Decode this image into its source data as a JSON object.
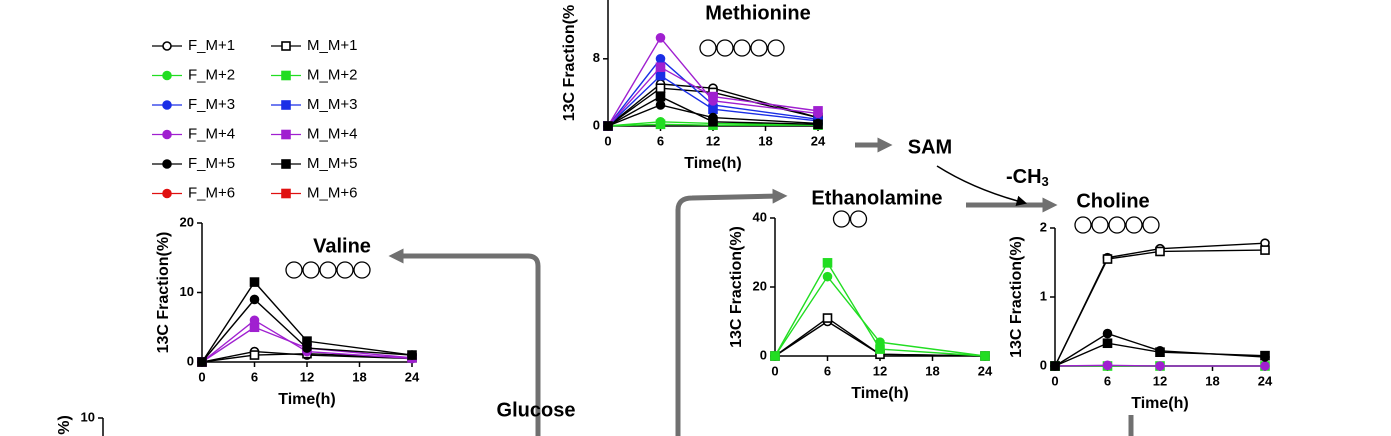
{
  "legend": [
    {
      "name": "F_M+1",
      "color": "#000000",
      "marker": "open-circle"
    },
    {
      "name": "M_M+1",
      "color": "#000000",
      "marker": "open-square"
    },
    {
      "name": "F_M+2",
      "color": "#22dd22",
      "marker": "circle"
    },
    {
      "name": "M_M+2",
      "color": "#22dd22",
      "marker": "square"
    },
    {
      "name": "F_M+3",
      "color": "#1a2ee6",
      "marker": "circle"
    },
    {
      "name": "M_M+3",
      "color": "#1a2ee6",
      "marker": "square"
    },
    {
      "name": "F_M+4",
      "color": "#a020d0",
      "marker": "circle"
    },
    {
      "name": "M_M+4",
      "color": "#a020d0",
      "marker": "square"
    },
    {
      "name": "F_M+5",
      "color": "#000000",
      "marker": "circle"
    },
    {
      "name": "M_M+5",
      "color": "#000000",
      "marker": "square"
    },
    {
      "name": "F_M+6",
      "color": "#e01010",
      "marker": "circle"
    },
    {
      "name": "M_M+6",
      "color": "#e01010",
      "marker": "square"
    }
  ],
  "pathway": {
    "sam": "SAM",
    "methyl": "-CH",
    "methyl_sub": "3",
    "glucose": "Glucose"
  },
  "chart_data": [
    {
      "type": "line",
      "title": "Methionine",
      "x_label": "Time(h)",
      "y_label": "13C Fraction(%",
      "x": [
        0,
        6,
        12,
        24
      ],
      "xlim": [
        0,
        24
      ],
      "xticks": [
        0,
        6,
        12,
        18,
        24
      ],
      "ylim": [
        0,
        15
      ],
      "yticks": [
        0,
        8
      ],
      "series": [
        {
          "name": "F_M+1",
          "color": "#000000",
          "marker": "open-circle",
          "values": [
            0,
            5,
            4.5,
            1
          ]
        },
        {
          "name": "M_M+1",
          "color": "#000000",
          "marker": "open-square",
          "values": [
            0,
            4.5,
            4,
            1
          ]
        },
        {
          "name": "F_M+2",
          "color": "#22dd22",
          "marker": "circle",
          "values": [
            0,
            0.5,
            0.3,
            0.2
          ]
        },
        {
          "name": "M_M+2",
          "color": "#22dd22",
          "marker": "square",
          "values": [
            0,
            0.2,
            0.1,
            0.1
          ]
        },
        {
          "name": "F_M+3",
          "color": "#1a2ee6",
          "marker": "circle",
          "values": [
            0,
            8,
            2.5,
            0.8
          ]
        },
        {
          "name": "M_M+3",
          "color": "#1a2ee6",
          "marker": "square",
          "values": [
            0,
            6,
            2,
            0.6
          ]
        },
        {
          "name": "F_M+4",
          "color": "#a020d0",
          "marker": "circle",
          "values": [
            0,
            10.5,
            3,
            1.5
          ]
        },
        {
          "name": "M_M+4",
          "color": "#a020d0",
          "marker": "square",
          "values": [
            0,
            7,
            3.5,
            1.8
          ]
        },
        {
          "name": "F_M+5",
          "color": "#000000",
          "marker": "circle",
          "values": [
            0,
            2.5,
            1,
            0.3
          ]
        },
        {
          "name": "M_M+5",
          "color": "#000000",
          "marker": "square",
          "values": [
            0,
            3.5,
            0.5,
            0.2
          ]
        }
      ]
    },
    {
      "type": "line",
      "title": "Valine",
      "x_label": "Time(h)",
      "y_label": "13C Fraction(%)",
      "x": [
        0,
        6,
        12,
        24
      ],
      "xlim": [
        0,
        24
      ],
      "xticks": [
        0,
        6,
        12,
        18,
        24
      ],
      "ylim": [
        0,
        20
      ],
      "yticks": [
        0,
        10,
        20
      ],
      "series": [
        {
          "name": "F_M+1",
          "color": "#000000",
          "marker": "open-circle",
          "values": [
            0,
            1.5,
            1,
            0.5
          ]
        },
        {
          "name": "M_M+1",
          "color": "#000000",
          "marker": "open-square",
          "values": [
            0,
            1,
            1.2,
            0.6
          ]
        },
        {
          "name": "F_M+4",
          "color": "#a020d0",
          "marker": "circle",
          "values": [
            0,
            6,
            1.5,
            0.5
          ]
        },
        {
          "name": "M_M+4",
          "color": "#a020d0",
          "marker": "square",
          "values": [
            0,
            5,
            2,
            0.6
          ]
        },
        {
          "name": "F_M+5",
          "color": "#000000",
          "marker": "circle",
          "values": [
            0,
            9,
            2,
            1
          ]
        },
        {
          "name": "M_M+5",
          "color": "#000000",
          "marker": "square",
          "values": [
            0,
            11.5,
            3,
            1
          ]
        }
      ]
    },
    {
      "type": "line",
      "title": "Ethanolamine",
      "x_label": "Time(h)",
      "y_label": "13C Fraction(%)",
      "x": [
        0,
        6,
        12,
        24
      ],
      "xlim": [
        0,
        24
      ],
      "xticks": [
        0,
        6,
        12,
        18,
        24
      ],
      "ylim": [
        0,
        40
      ],
      "yticks": [
        0,
        20,
        40
      ],
      "series": [
        {
          "name": "F_M+1",
          "color": "#000000",
          "marker": "open-circle",
          "values": [
            0,
            10,
            0.5,
            0
          ]
        },
        {
          "name": "M_M+1",
          "color": "#000000",
          "marker": "open-square",
          "values": [
            0,
            11,
            0.5,
            0
          ]
        },
        {
          "name": "F_M+2",
          "color": "#22dd22",
          "marker": "circle",
          "values": [
            0,
            23,
            4,
            0
          ]
        },
        {
          "name": "M_M+2",
          "color": "#22dd22",
          "marker": "square",
          "values": [
            0,
            27,
            2,
            0
          ]
        }
      ]
    },
    {
      "type": "line",
      "title": "Choline",
      "x_label": "Time(h)",
      "y_label": "13C Fraction(%)",
      "x": [
        0,
        6,
        12,
        24
      ],
      "xlim": [
        0,
        24
      ],
      "xticks": [
        0,
        6,
        12,
        18,
        24
      ],
      "ylim": [
        0,
        2
      ],
      "yticks": [
        0,
        1,
        2
      ],
      "series": [
        {
          "name": "F_M+1",
          "color": "#000000",
          "marker": "open-circle",
          "values": [
            0,
            1.57,
            1.7,
            1.78
          ]
        },
        {
          "name": "M_M+1",
          "color": "#000000",
          "marker": "open-square",
          "values": [
            0,
            1.55,
            1.66,
            1.68
          ]
        },
        {
          "name": "M_M+2",
          "color": "#22dd22",
          "marker": "square",
          "values": [
            0,
            0,
            0,
            0
          ]
        },
        {
          "name": "F_M+4",
          "color": "#a020d0",
          "marker": "circle",
          "values": [
            0,
            0.01,
            0,
            0
          ]
        },
        {
          "name": "F_M+5",
          "color": "#000000",
          "marker": "circle",
          "values": [
            0,
            0.47,
            0.22,
            0.13
          ]
        },
        {
          "name": "M_M+5",
          "color": "#000000",
          "marker": "square",
          "values": [
            0,
            0.33,
            0.2,
            0.15
          ]
        }
      ]
    },
    {
      "type": "line",
      "y_label": "%)",
      "ylim": [
        0,
        10
      ],
      "yticks": [
        10
      ],
      "series": []
    }
  ]
}
